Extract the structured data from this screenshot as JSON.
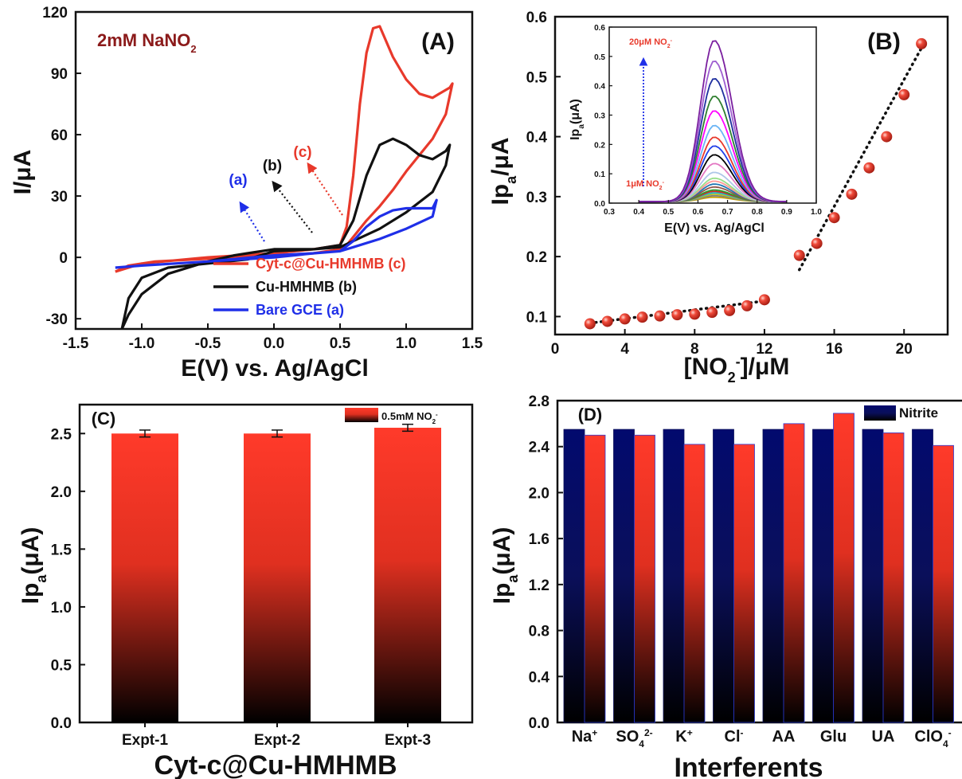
{
  "figure": {
    "panels": [
      "(A)",
      "(B)",
      "(C)",
      "(D)"
    ]
  },
  "chart_data": [
    {
      "panel": "(A)",
      "type": "line",
      "annotation": {
        "text": "2mM NaNO",
        "sub": "2",
        "color": "#8b1a1a"
      },
      "xlabel": "E(V) vs. Ag/AgCl",
      "ylabel": "I/μA",
      "xlim": [
        -1.5,
        1.5
      ],
      "ylim": [
        -35,
        120
      ],
      "xticks": [
        "-1.5",
        "-1.0",
        "-0.5",
        "0.0",
        "0.5",
        "1.0",
        "1.5"
      ],
      "xtick_values": [
        -1.5,
        -1.0,
        -0.5,
        0.0,
        0.5,
        1.0,
        1.5
      ],
      "yticks": [
        "-30",
        "0",
        "30",
        "60",
        "90",
        "120"
      ],
      "ytick_values": [
        -30,
        0,
        30,
        60,
        90,
        120
      ],
      "legend": [
        {
          "label": "Cyt-c@Cu-HMHMB (c)",
          "color": "#e8392b"
        },
        {
          "label": "Cu-HMHMB (b)",
          "color": "#111111"
        },
        {
          "label": "Bare GCE (a)",
          "color": "#1f2fe8"
        }
      ],
      "arrow_labels": [
        {
          "text": "(a)",
          "color": "#1f2fe8"
        },
        {
          "text": "(b)",
          "color": "#111111"
        },
        {
          "text": "(c)",
          "color": "#e8392b"
        }
      ],
      "series": [
        {
          "name": "Cyt-c@Cu-HMHMB (c)",
          "color": "#e8392b",
          "x": [
            -1.2,
            -1.0,
            -0.5,
            0.0,
            0.3,
            0.5,
            0.55,
            0.6,
            0.65,
            0.7,
            0.75,
            0.8,
            0.9,
            1.0,
            1.1,
            1.2,
            1.25,
            1.33,
            1.35,
            1.3,
            1.2,
            1.0,
            0.9,
            0.8,
            0.7,
            0.6,
            0.55,
            0.5,
            0.3,
            0.0,
            -0.3,
            -0.6,
            -0.9,
            -1.1,
            -1.2
          ],
          "y": [
            -7,
            -3,
            0,
            2,
            4,
            6,
            15,
            40,
            75,
            100,
            112,
            113,
            98,
            87,
            80,
            78,
            80,
            83,
            85,
            70,
            58,
            42,
            33,
            25,
            18,
            10,
            6,
            4,
            2,
            1,
            0,
            -1,
            -2,
            -4,
            -7
          ]
        },
        {
          "name": "Cu-HMHMB (b)",
          "color": "#111111",
          "x": [
            -1.15,
            -1.1,
            -1.0,
            -0.8,
            -0.5,
            -0.2,
            0.0,
            0.3,
            0.5,
            0.6,
            0.7,
            0.8,
            0.9,
            1.0,
            1.1,
            1.2,
            1.3,
            1.33,
            1.3,
            1.2,
            1.0,
            0.8,
            0.6,
            0.5,
            0.3,
            0.0,
            -0.2,
            -0.3,
            -0.5,
            -0.8,
            -1.0,
            -1.1,
            -1.15
          ],
          "y": [
            -35,
            -20,
            -10,
            -5,
            -3,
            -1,
            3,
            4,
            6,
            18,
            40,
            55,
            58,
            55,
            50,
            48,
            52,
            55,
            45,
            32,
            22,
            14,
            8,
            5,
            4,
            4,
            2,
            1,
            -2,
            -8,
            -18,
            -28,
            -35
          ]
        },
        {
          "name": "Bare GCE (a)",
          "color": "#1f2fe8",
          "x": [
            -1.2,
            -1.0,
            -0.5,
            0.0,
            0.3,
            0.5,
            0.6,
            0.7,
            0.8,
            0.9,
            1.0,
            1.1,
            1.2,
            1.23,
            1.2,
            1.0,
            0.8,
            0.6,
            0.5,
            0.3,
            0.0,
            -0.5,
            -1.0,
            -1.2
          ],
          "y": [
            -5,
            -4,
            -2,
            1,
            2,
            3,
            8,
            15,
            20,
            23,
            24,
            24,
            24,
            28,
            20,
            14,
            9,
            5,
            3,
            2,
            0,
            -2,
            -4,
            -5
          ]
        }
      ]
    },
    {
      "panel": "(B)",
      "type": "scatter",
      "xlabel": "[NO",
      "xlabel_sub": "2",
      "xlabel_sup": "-",
      "xlabel_tail": "]/μM",
      "ylabel": "Ip",
      "ylabel_sub": "a",
      "ylabel_tail": "/μA",
      "xlim": [
        0,
        22.5
      ],
      "ylim": [
        0.07,
        0.6
      ],
      "xticks": [
        "0",
        "4",
        "8",
        "12",
        "16",
        "20"
      ],
      "xtick_values": [
        0,
        4,
        8,
        12,
        16,
        20
      ],
      "yticks": [
        "0.1",
        "0.2",
        "0.3",
        "0.4",
        "0.5",
        "0.6"
      ],
      "ytick_values": [
        0.1,
        0.2,
        0.3,
        0.4,
        0.5,
        0.6
      ],
      "marker_color": "#e8392b",
      "x": [
        2,
        3,
        4,
        5,
        6,
        7,
        8,
        9,
        10,
        11,
        12,
        14,
        15,
        16,
        17,
        18,
        19,
        20,
        21
      ],
      "y": [
        0.088,
        0.092,
        0.096,
        0.099,
        0.101,
        0.103,
        0.104,
        0.107,
        0.11,
        0.118,
        0.128,
        0.202,
        0.222,
        0.265,
        0.304,
        0.348,
        0.4,
        0.47,
        0.555
      ],
      "fit_lines": [
        {
          "x": [
            2,
            12
          ],
          "y": [
            0.089,
            0.126
          ]
        },
        {
          "x": [
            14,
            21
          ],
          "y": [
            0.178,
            0.548
          ]
        }
      ],
      "inset": {
        "xlabel": "E(V) vs. Ag/AgCl",
        "ylabel": "Ip",
        "ylabel_sub": "a",
        "ylabel_tail": "(μA)",
        "xlim": [
          0.3,
          1.0
        ],
        "ylim": [
          0,
          0.6
        ],
        "xticks": [
          "0.3",
          "0.4",
          "0.5",
          "0.6",
          "0.7",
          "0.8",
          "0.9",
          "1.0"
        ],
        "xtick_values": [
          0.3,
          0.4,
          0.5,
          0.6,
          0.7,
          0.8,
          0.9,
          1.0
        ],
        "yticks": [
          "0.0",
          "0.1",
          "0.2",
          "0.3",
          "0.4",
          "0.5",
          "0.6"
        ],
        "ytick_values": [
          0.0,
          0.1,
          0.2,
          0.3,
          0.4,
          0.5,
          0.6
        ],
        "label_top": "20μM NO",
        "label_bottom": "1μM NO",
        "label_sub": "2",
        "label_sup": "-",
        "peak_center": 0.655,
        "peak_heights": [
          0.015,
          0.02,
          0.025,
          0.03,
          0.035,
          0.04,
          0.05,
          0.06,
          0.07,
          0.08,
          0.1,
          0.13,
          0.16,
          0.19,
          0.22,
          0.26,
          0.31,
          0.36,
          0.42,
          0.48,
          0.55
        ],
        "colors": [
          "#c8a000",
          "#7f7f7f",
          "#bcbd22",
          "#17becf",
          "#d62728",
          "#2ca02c",
          "#8c564b",
          "#1f77b4",
          "#ff9896",
          "#98df8a",
          "#aec7e8",
          "#e377c2",
          "#000000",
          "#1f3fe8",
          "#e8392b",
          "#6bb5f5",
          "#ff00ff",
          "#2f7f2f",
          "#1f2f9f",
          "#9e5ed0",
          "#7a1f9f"
        ]
      }
    },
    {
      "panel": "(C)",
      "type": "bar",
      "categories": [
        "Expt-1",
        "Expt-2",
        "Expt-3"
      ],
      "values": [
        2.5,
        2.5,
        2.55
      ],
      "errors": [
        0.03,
        0.03,
        0.03
      ],
      "xlabel": "Cyt-c@Cu-HMHMB",
      "ylabel": "Ip",
      "ylabel_sub": "a",
      "ylabel_tail": "(μA)",
      "ylim": [
        0,
        2.75
      ],
      "yticks": [
        "0.0",
        "0.5",
        "1.0",
        "1.5",
        "2.0",
        "2.5"
      ],
      "ytick_values": [
        0,
        0.5,
        1.0,
        1.5,
        2.0,
        2.5
      ],
      "legend": [
        {
          "label": "0.5mM NO",
          "sub": "2",
          "sup": "-"
        }
      ],
      "bar_gradient": [
        "#ff3a2a",
        "#e03020",
        "#000000"
      ]
    },
    {
      "panel": "(D)",
      "type": "bar",
      "categories": [
        "Na",
        "SO",
        "K",
        "Cl",
        "AA",
        "Glu",
        "UA",
        "ClO"
      ],
      "category_sub": [
        "",
        "4",
        "",
        "",
        "",
        "",
        "",
        "4"
      ],
      "category_sup": [
        "+",
        "2-",
        "+",
        "-",
        "",
        "",
        "",
        "-"
      ],
      "series": [
        {
          "name": "Nitrite",
          "values": [
            2.55,
            2.55,
            2.55,
            2.55,
            2.55,
            2.55,
            2.55,
            2.55
          ],
          "gradient": [
            "#020a6e",
            "#0a0f5a",
            "#000000"
          ]
        },
        {
          "values": [
            2.5,
            2.5,
            2.42,
            2.42,
            2.6,
            2.69,
            2.52,
            2.41
          ],
          "gradient": [
            "#ff3a2a",
            "#e03020",
            "#000000"
          ]
        }
      ],
      "xlabel": "Interferents",
      "ylabel": "Ip",
      "ylabel_sub": "a",
      "ylabel_tail": "(μA)",
      "ylim": [
        0,
        2.8
      ],
      "yticks": [
        "0.0",
        "0.4",
        "0.8",
        "1.2",
        "1.6",
        "2.0",
        "2.4",
        "2.8"
      ],
      "ytick_values": [
        0,
        0.4,
        0.8,
        1.2,
        1.6,
        2.0,
        2.4,
        2.8
      ]
    }
  ]
}
